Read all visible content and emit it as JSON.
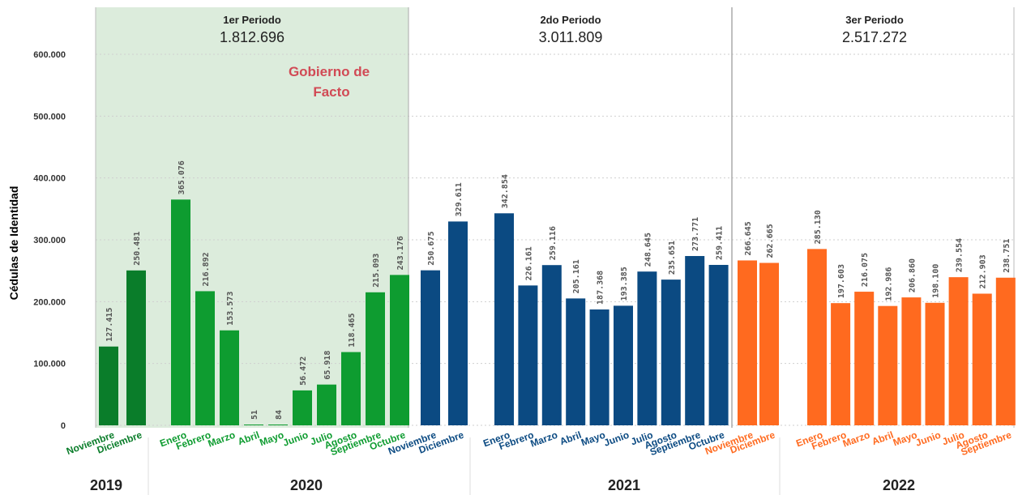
{
  "chart_data": {
    "type": "bar",
    "ylabel": "Cédulas de Identidad",
    "ylim": [
      0,
      650000
    ],
    "yticks": [
      "0",
      "100.000",
      "200.000",
      "300.000",
      "400.000",
      "500.000",
      "600.000"
    ],
    "ytick_values": [
      0,
      100000,
      200000,
      300000,
      400000,
      500000,
      600000
    ],
    "grid": true,
    "colors": {
      "green_dark": "#0a7d2a",
      "green": "#0e9c30",
      "blue": "#0b4a82",
      "orange": "#ff6a1f",
      "shade": "#dcecdc",
      "annotation": "#d14a55"
    },
    "periods": [
      {
        "title": "1er Periodo",
        "total": "1.812.696",
        "annotation": [
          "Gobierno de",
          "Facto"
        ]
      },
      {
        "title": "2do Periodo",
        "total": "3.011.809"
      },
      {
        "title": "3er Periodo",
        "total": "2.517.272"
      }
    ],
    "years": [
      "2019",
      "2020",
      "2021",
      "2022"
    ],
    "series": [
      {
        "year": "2019",
        "color": "green_dark",
        "months": [
          "Noviembre",
          "Diciembre"
        ],
        "values": [
          127415,
          250481
        ],
        "labels": [
          "127.415",
          "250.481"
        ]
      },
      {
        "year": "2020",
        "color": "green",
        "months": [
          "Enero",
          "Febrero",
          "Marzo",
          "Abril",
          "Mayo",
          "Junio",
          "Julio",
          "Agosto",
          "Septiembre",
          "Octubre"
        ],
        "values": [
          365076,
          216892,
          153573,
          51,
          84,
          56472,
          65918,
          118465,
          215093,
          243176
        ],
        "labels": [
          "365.076",
          "216.892",
          "153.573",
          "51",
          "84",
          "56.472",
          "65.918",
          "118.465",
          "215.093",
          "243.176"
        ]
      },
      {
        "year": "2020",
        "color": "blue",
        "months": [
          "Noviembre",
          "Diciembre"
        ],
        "values": [
          250675,
          329611
        ],
        "labels": [
          "250.675",
          "329.611"
        ]
      },
      {
        "year": "2021",
        "color": "blue",
        "months": [
          "Enero",
          "Febrero",
          "Marzo",
          "Abril",
          "Mayo",
          "Junio",
          "Julio",
          "Agosto",
          "Septiembre",
          "Octubre"
        ],
        "values": [
          342854,
          226161,
          259116,
          205161,
          187368,
          193385,
          248645,
          235651,
          273771,
          259411
        ],
        "labels": [
          "342.854",
          "226.161",
          "259.116",
          "205.161",
          "187.368",
          "193.385",
          "248.645",
          "235.651",
          "273.771",
          "259.411"
        ]
      },
      {
        "year": "2021",
        "color": "orange",
        "months": [
          "Noviembre",
          "Diciembre"
        ],
        "values": [
          266645,
          262665
        ],
        "labels": [
          "266.645",
          "262.665"
        ]
      },
      {
        "year": "2022",
        "color": "orange",
        "months": [
          "Enero",
          "Febrero",
          "Marzo",
          "Abril",
          "Mayo",
          "Junio",
          "Julio",
          "Agosto",
          "Septiembre"
        ],
        "values": [
          285130,
          197603,
          216075,
          192986,
          206860,
          198100,
          239554,
          212903,
          238751
        ],
        "labels": [
          "285.130",
          "197.603",
          "216.075",
          "192.986",
          "206.860",
          "198.100",
          "239.554",
          "212.903",
          "238.751"
        ]
      }
    ]
  }
}
